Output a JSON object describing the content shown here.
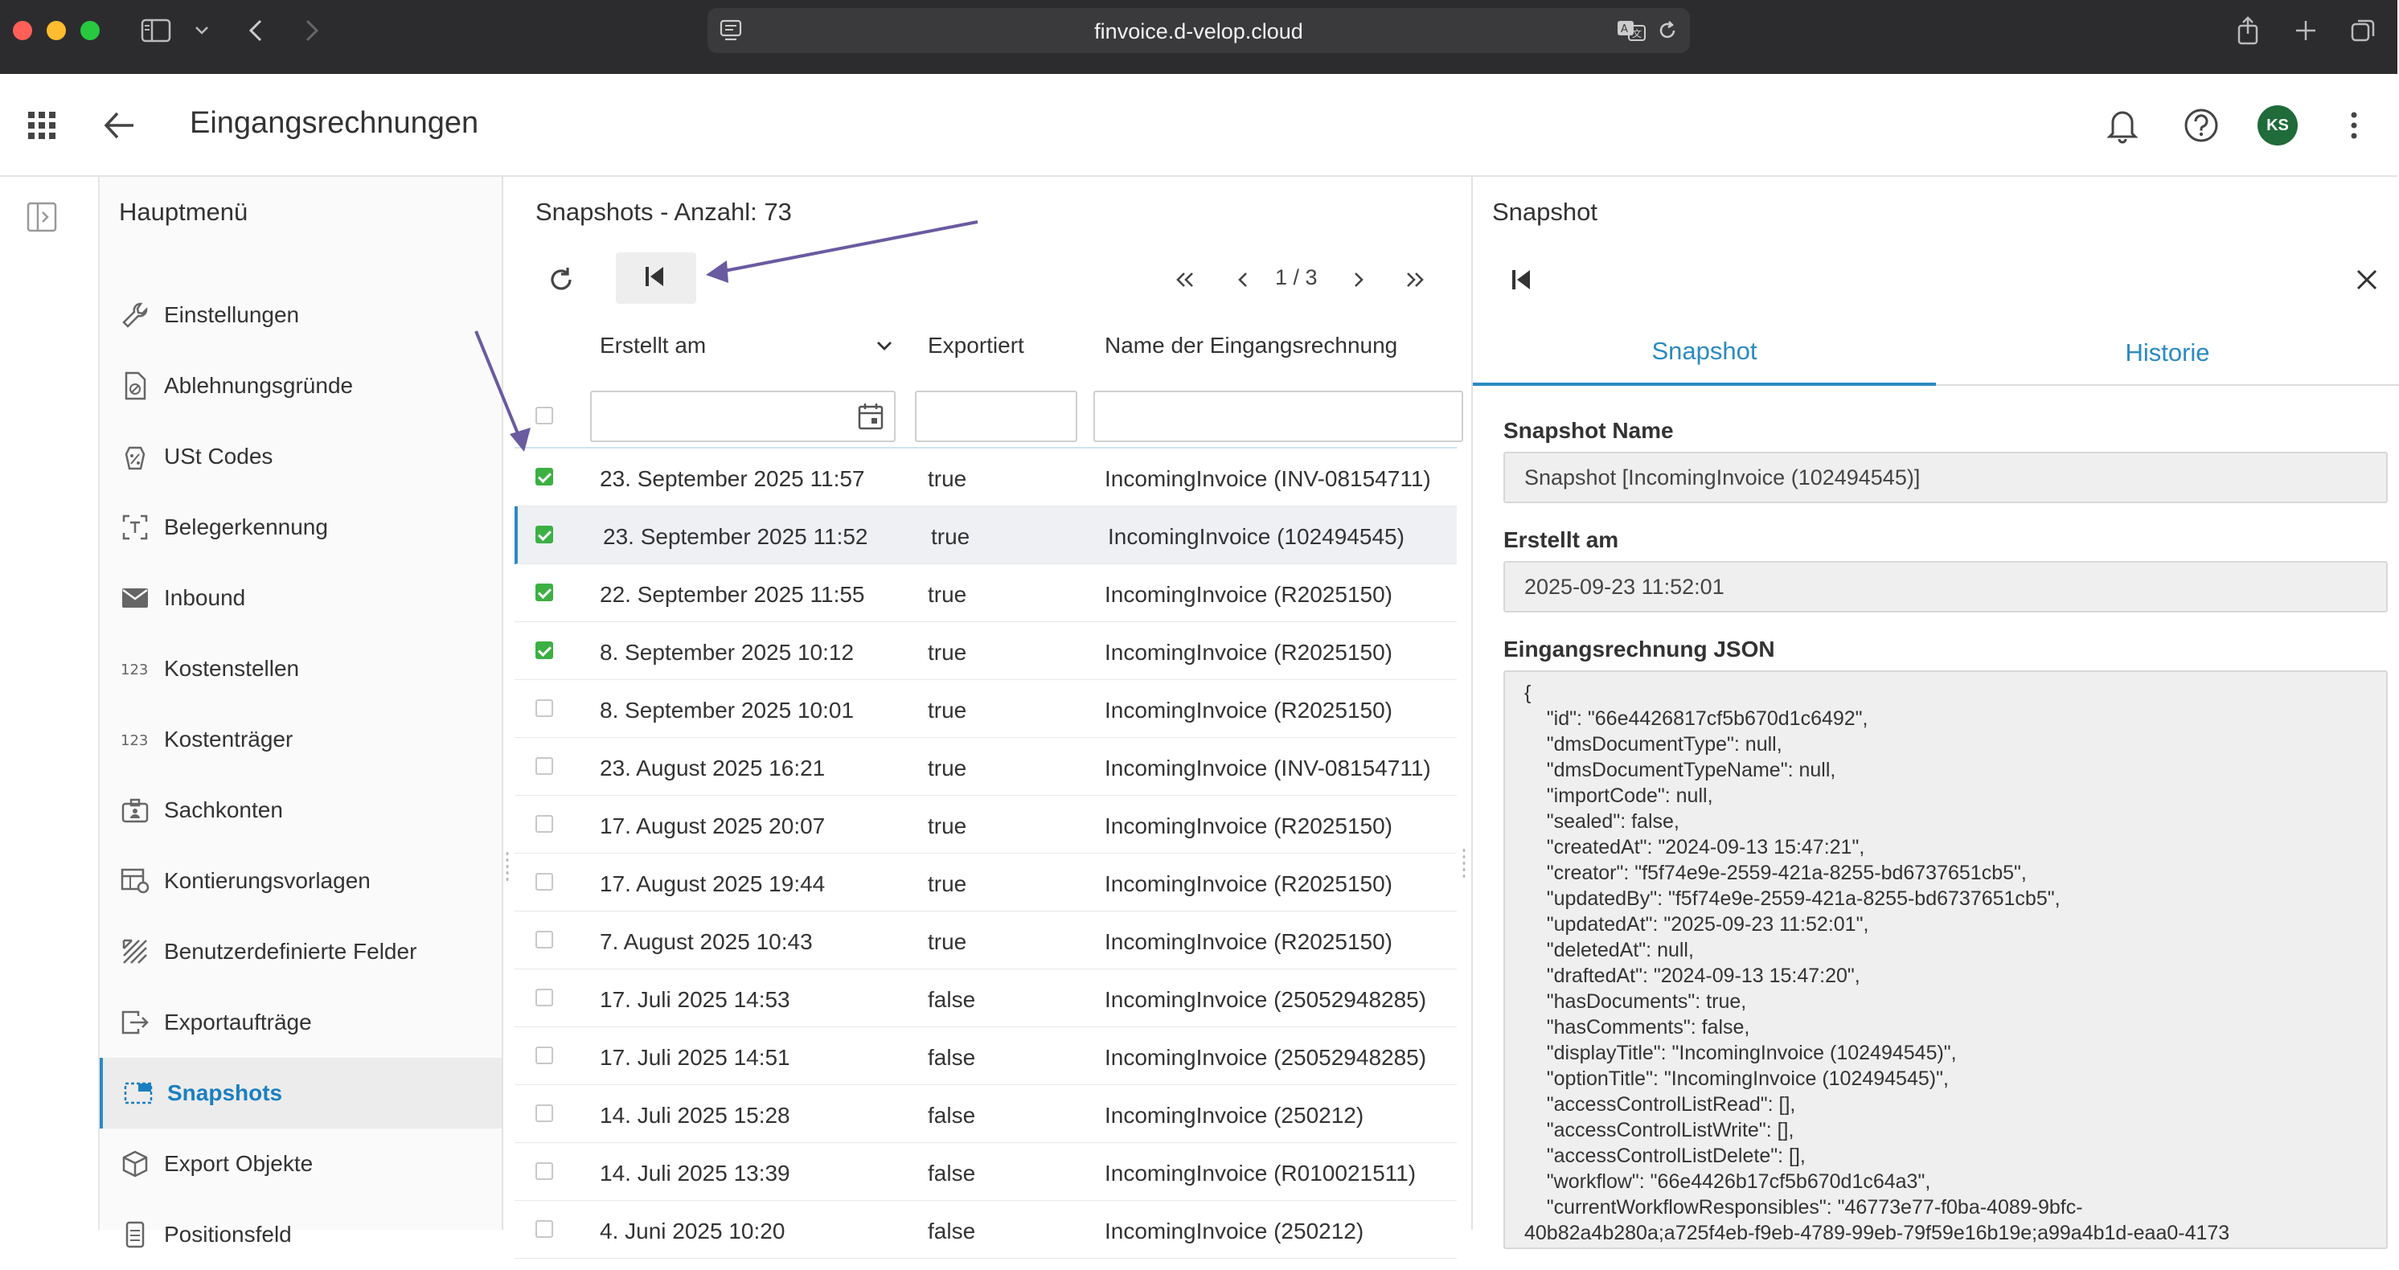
{
  "browser": {
    "url": "finvoice.d-velop.cloud"
  },
  "app": {
    "title": "Eingangsrechnungen",
    "avatar_initials": "KS"
  },
  "sidebar": {
    "title": "Hauptmenü",
    "items": [
      {
        "label": "Einstellungen",
        "icon": "wrench-icon"
      },
      {
        "label": "Ablehnungsgründe",
        "icon": "document-reject-icon"
      },
      {
        "label": "USt Codes",
        "icon": "percent-tag-icon"
      },
      {
        "label": "Belegerkennung",
        "icon": "text-scan-icon"
      },
      {
        "label": "Inbound",
        "icon": "envelope-icon"
      },
      {
        "label": "Kostenstellen",
        "icon": "numbers-icon"
      },
      {
        "label": "Kostenträger",
        "icon": "numbers-icon"
      },
      {
        "label": "Sachkonten",
        "icon": "badge-icon"
      },
      {
        "label": "Kontierungsvorlagen",
        "icon": "table-settings-icon"
      },
      {
        "label": "Benutzerdefinierte Felder",
        "icon": "custom-fields-icon"
      },
      {
        "label": "Exportaufträge",
        "icon": "export-icon"
      },
      {
        "label": "Snapshots",
        "icon": "snapshot-icon",
        "active": true
      },
      {
        "label": "Export Objekte",
        "icon": "cube-icon"
      },
      {
        "label": "Positionsfeld",
        "icon": "position-field-icon"
      }
    ]
  },
  "list": {
    "heading": "Snapshots - Anzahl: 73",
    "pager": "1 / 3",
    "columns": {
      "created": "Erstellt am",
      "exported": "Exportiert",
      "name": "Name der Eingangsrechnung"
    },
    "rows": [
      {
        "created": "23. September 2025 11:57",
        "exported": "true",
        "name": "IncomingInvoice (INV-08154711)",
        "checked": true
      },
      {
        "created": "23. September 2025 11:52",
        "exported": "true",
        "name": "IncomingInvoice (102494545)",
        "checked": true,
        "selected": true
      },
      {
        "created": "22. September 2025 11:55",
        "exported": "true",
        "name": "IncomingInvoice (R2025150)",
        "checked": true
      },
      {
        "created": "8. September 2025 10:12",
        "exported": "true",
        "name": "IncomingInvoice (R2025150)",
        "checked": true
      },
      {
        "created": "8. September 2025 10:01",
        "exported": "true",
        "name": "IncomingInvoice (R2025150)",
        "checked": false
      },
      {
        "created": "23. August 2025 16:21",
        "exported": "true",
        "name": "IncomingInvoice (INV-08154711)",
        "checked": false
      },
      {
        "created": "17. August 2025 20:07",
        "exported": "true",
        "name": "IncomingInvoice (R2025150)",
        "checked": false
      },
      {
        "created": "17. August 2025 19:44",
        "exported": "true",
        "name": "IncomingInvoice (R2025150)",
        "checked": false
      },
      {
        "created": "7. August 2025 10:43",
        "exported": "true",
        "name": "IncomingInvoice (R2025150)",
        "checked": false
      },
      {
        "created": "17. Juli 2025 14:53",
        "exported": "false",
        "name": "IncomingInvoice (25052948285)",
        "checked": false
      },
      {
        "created": "17. Juli 2025 14:51",
        "exported": "false",
        "name": "IncomingInvoice (25052948285)",
        "checked": false
      },
      {
        "created": "14. Juli 2025 15:28",
        "exported": "false",
        "name": "IncomingInvoice (250212)",
        "checked": false
      },
      {
        "created": "14. Juli 2025 13:39",
        "exported": "false",
        "name": "IncomingInvoice (R010021511)",
        "checked": false
      },
      {
        "created": "4. Juni 2025 10:20",
        "exported": "false",
        "name": "IncomingInvoice (250212)",
        "checked": false
      }
    ]
  },
  "detail": {
    "title": "Snapshot",
    "tabs": [
      "Snapshot",
      "Historie"
    ],
    "snapshot_name_label": "Snapshot Name",
    "snapshot_name_value": "Snapshot [IncomingInvoice (102494545)]",
    "created_label": "Erstellt am",
    "created_value": "2025-09-23 11:52:01",
    "json_label": "Eingangsrechnung JSON",
    "json_lines": [
      "{",
      "    \"id\": \"66e4426817cf5b670d1c6492\",",
      "    \"dmsDocumentType\": null,",
      "    \"dmsDocumentTypeName\": null,",
      "    \"importCode\": null,",
      "    \"sealed\": false,",
      "    \"createdAt\": \"2024-09-13 15:47:21\",",
      "    \"creator\": \"f5f74e9e-2559-421a-8255-bd6737651cb5\",",
      "    \"updatedBy\": \"f5f74e9e-2559-421a-8255-bd6737651cb5\",",
      "    \"updatedAt\": \"2025-09-23 11:52:01\",",
      "    \"deletedAt\": null,",
      "    \"draftedAt\": \"2024-09-13 15:47:20\",",
      "    \"hasDocuments\": true,",
      "    \"hasComments\": false,",
      "    \"displayTitle\": \"IncomingInvoice (102494545)\",",
      "    \"optionTitle\": \"IncomingInvoice (102494545)\",",
      "    \"accessControlListRead\": [],",
      "    \"accessControlListWrite\": [],",
      "    \"accessControlListDelete\": [],",
      "    \"workflow\": \"66e4426b17cf5b670d1c64a3\",",
      "    \"currentWorkflowResponsibles\": \"46773e77-f0ba-4089-9bfc-",
      "40b82a4b280a;a725f4eb-f9eb-4789-99eb-79f59e16b19e;a99a4b1d-eaa0-4173"
    ]
  },
  "colors": {
    "accent": "#2b8ac1",
    "checkbox_checked": "#3cb043",
    "annotation_arrow": "#6a5aa0",
    "avatar_bg": "#1f6b3a"
  }
}
